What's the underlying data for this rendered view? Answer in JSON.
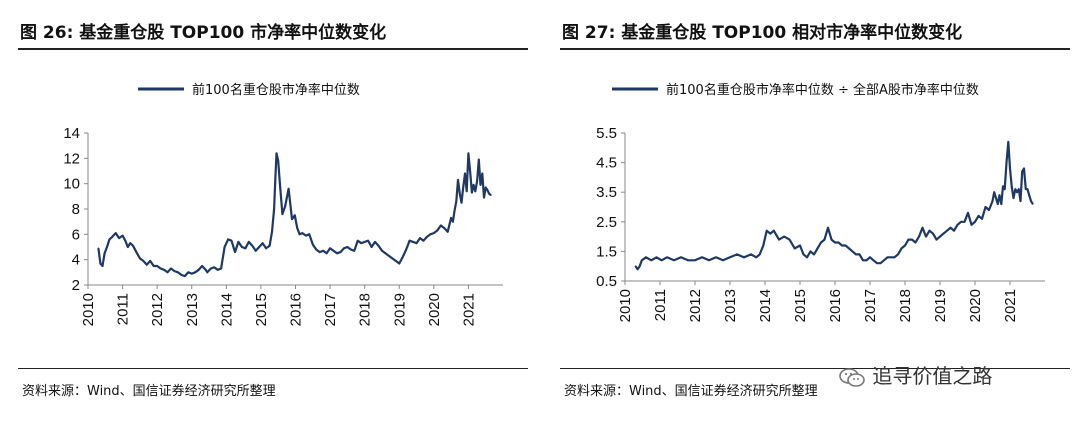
{
  "figures": [
    {
      "title": "图 26: 基金重仓股 TOP100 市净率中位数变化",
      "source": "资料来源：Wind、国信证券经济研究所整理",
      "chart_data": {
        "type": "line",
        "title": "",
        "xlabel": "",
        "ylabel": "",
        "xlim": [
          2010.0,
          2022.0
        ],
        "ylim": [
          2,
          14
        ],
        "yticks": [
          "2",
          "4",
          "6",
          "8",
          "10",
          "12",
          "14"
        ],
        "xticks": [
          "2010",
          "2011",
          "2012",
          "2013",
          "2014",
          "2015",
          "2016",
          "2017",
          "2018",
          "2019",
          "2020",
          "2021"
        ],
        "legend_position": "top-center",
        "series": [
          {
            "name": "前100名重仓股市净率中位数",
            "color": "#1f3864",
            "x": [
              2010.3,
              2010.36,
              2010.42,
              2010.48,
              2010.55,
              2010.62,
              2010.7,
              2010.8,
              2010.9,
              2011.0,
              2011.08,
              2011.15,
              2011.22,
              2011.3,
              2011.4,
              2011.5,
              2011.6,
              2011.7,
              2011.8,
              2011.9,
              2012.0,
              2012.1,
              2012.2,
              2012.3,
              2012.4,
              2012.5,
              2012.6,
              2012.7,
              2012.8,
              2012.9,
              2013.0,
              2013.1,
              2013.2,
              2013.3,
              2013.4,
              2013.45,
              2013.55,
              2013.65,
              2013.75,
              2013.85,
              2013.95,
              2014.05,
              2014.15,
              2014.25,
              2014.35,
              2014.45,
              2014.55,
              2014.65,
              2014.75,
              2014.85,
              2014.95,
              2015.05,
              2015.15,
              2015.25,
              2015.32,
              2015.38,
              2015.42,
              2015.45,
              2015.5,
              2015.55,
              2015.62,
              2015.7,
              2015.8,
              2015.9,
              2015.98,
              2016.05,
              2016.12,
              2016.2,
              2016.3,
              2016.4,
              2016.5,
              2016.6,
              2016.7,
              2016.8,
              2016.9,
              2017.0,
              2017.1,
              2017.2,
              2017.3,
              2017.4,
              2017.5,
              2017.6,
              2017.7,
              2017.8,
              2017.9,
              2018.0,
              2018.1,
              2018.2,
              2018.3,
              2018.4,
              2018.5,
              2018.6,
              2018.7,
              2018.8,
              2018.9,
              2019.0,
              2019.1,
              2019.2,
              2019.3,
              2019.4,
              2019.5,
              2019.6,
              2019.7,
              2019.8,
              2019.9,
              2020.0,
              2020.1,
              2020.2,
              2020.3,
              2020.4,
              2020.5,
              2020.55,
              2020.6,
              2020.65,
              2020.7,
              2020.75,
              2020.8,
              2020.85,
              2020.9,
              2020.95,
              2021.0,
              2021.05,
              2021.1,
              2021.15,
              2021.2,
              2021.25,
              2021.3,
              2021.35,
              2021.4,
              2021.45,
              2021.5,
              2021.55,
              2021.6,
              2021.65
            ],
            "values": [
              4.9,
              3.7,
              3.5,
              4.5,
              5.0,
              5.6,
              5.8,
              6.1,
              5.7,
              5.9,
              5.5,
              5.0,
              5.3,
              5.1,
              4.6,
              4.1,
              3.9,
              3.6,
              3.9,
              3.5,
              3.5,
              3.3,
              3.2,
              3.0,
              3.3,
              3.1,
              3.0,
              2.8,
              2.7,
              3.0,
              2.9,
              3.0,
              3.2,
              3.5,
              3.2,
              3.0,
              3.3,
              3.4,
              3.2,
              3.3,
              5.0,
              5.6,
              5.5,
              4.6,
              5.4,
              5.0,
              4.9,
              5.4,
              5.1,
              4.7,
              5.0,
              5.3,
              4.9,
              5.1,
              6.2,
              8.0,
              10.5,
              12.4,
              11.8,
              10.0,
              7.6,
              8.2,
              9.6,
              7.2,
              7.5,
              6.5,
              6.0,
              6.1,
              5.9,
              6.0,
              5.2,
              4.8,
              4.6,
              4.7,
              4.5,
              4.9,
              4.7,
              4.5,
              4.6,
              4.9,
              5.0,
              4.8,
              4.7,
              5.5,
              5.3,
              5.4,
              5.5,
              5.0,
              5.4,
              5.1,
              4.7,
              4.5,
              4.3,
              4.1,
              3.9,
              3.7,
              4.2,
              4.8,
              5.5,
              5.4,
              5.3,
              5.7,
              5.5,
              5.8,
              6.0,
              6.1,
              6.3,
              6.7,
              6.5,
              6.2,
              7.3,
              7.0,
              7.9,
              8.6,
              10.3,
              9.2,
              8.5,
              9.7,
              10.8,
              9.4,
              12.4,
              11.0,
              9.3,
              9.9,
              9.4,
              10.2,
              11.9,
              9.9,
              10.8,
              8.9,
              9.7,
              9.5,
              9.2,
              9.1
            ]
          }
        ]
      }
    },
    {
      "title": "图 27: 基金重仓股 TOP100 相对市净率中位数变化",
      "source": "资料来源：Wind、国信证券经济研究所整理",
      "chart_data": {
        "type": "line",
        "title": "",
        "xlabel": "",
        "ylabel": "",
        "xlim": [
          2010.0,
          2022.0
        ],
        "ylim": [
          0.5,
          5.5
        ],
        "yticks": [
          "0.5",
          "1.5",
          "2.5",
          "3.5",
          "4.5",
          "5.5"
        ],
        "xticks": [
          "2010",
          "2011",
          "2012",
          "2013",
          "2014",
          "2015",
          "2016",
          "2017",
          "2018",
          "2019",
          "2020",
          "2021"
        ],
        "legend_position": "top-center",
        "series": [
          {
            "name": "前100名重仓股市净率中位数 ÷ 全部A股市净率中位数",
            "color": "#1f3864",
            "x": [
              2010.3,
              2010.36,
              2010.42,
              2010.48,
              2010.6,
              2010.75,
              2010.9,
              2011.05,
              2011.2,
              2011.4,
              2011.6,
              2011.8,
              2012.0,
              2012.2,
              2012.4,
              2012.6,
              2012.8,
              2013.0,
              2013.2,
              2013.4,
              2013.6,
              2013.75,
              2013.85,
              2013.95,
              2014.05,
              2014.15,
              2014.25,
              2014.4,
              2014.55,
              2014.7,
              2014.85,
              2015.0,
              2015.1,
              2015.2,
              2015.3,
              2015.4,
              2015.5,
              2015.6,
              2015.7,
              2015.8,
              2015.9,
              2016.0,
              2016.1,
              2016.2,
              2016.3,
              2016.4,
              2016.5,
              2016.6,
              2016.7,
              2016.8,
              2016.9,
              2017.0,
              2017.1,
              2017.2,
              2017.3,
              2017.4,
              2017.5,
              2017.6,
              2017.7,
              2017.8,
              2017.9,
              2018.0,
              2018.1,
              2018.2,
              2018.3,
              2018.4,
              2018.5,
              2018.6,
              2018.7,
              2018.8,
              2018.9,
              2019.0,
              2019.1,
              2019.2,
              2019.3,
              2019.4,
              2019.5,
              2019.6,
              2019.7,
              2019.8,
              2019.9,
              2020.0,
              2020.1,
              2020.2,
              2020.3,
              2020.4,
              2020.5,
              2020.55,
              2020.6,
              2020.65,
              2020.7,
              2020.75,
              2020.8,
              2020.85,
              2020.9,
              2020.95,
              2021.0,
              2021.05,
              2021.1,
              2021.15,
              2021.2,
              2021.25,
              2021.3,
              2021.35,
              2021.4,
              2021.45,
              2021.5,
              2021.55,
              2021.6,
              2021.65
            ],
            "values": [
              1.0,
              0.9,
              1.0,
              1.2,
              1.3,
              1.2,
              1.3,
              1.2,
              1.3,
              1.2,
              1.3,
              1.2,
              1.2,
              1.3,
              1.2,
              1.3,
              1.2,
              1.3,
              1.4,
              1.3,
              1.4,
              1.3,
              1.4,
              1.7,
              2.2,
              2.1,
              2.2,
              1.9,
              2.0,
              1.9,
              1.6,
              1.7,
              1.4,
              1.3,
              1.5,
              1.4,
              1.6,
              1.8,
              1.9,
              2.3,
              1.9,
              1.8,
              1.8,
              1.7,
              1.7,
              1.6,
              1.5,
              1.4,
              1.4,
              1.2,
              1.2,
              1.3,
              1.2,
              1.1,
              1.1,
              1.2,
              1.3,
              1.3,
              1.3,
              1.4,
              1.6,
              1.7,
              1.9,
              1.9,
              1.8,
              2.0,
              2.3,
              2.0,
              2.2,
              2.1,
              1.9,
              2.0,
              2.1,
              2.2,
              2.3,
              2.2,
              2.4,
              2.5,
              2.5,
              2.8,
              2.4,
              2.5,
              2.7,
              2.6,
              3.0,
              2.9,
              3.2,
              3.5,
              3.3,
              3.1,
              3.4,
              3.1,
              3.7,
              3.6,
              4.5,
              5.2,
              4.3,
              3.7,
              3.3,
              3.6,
              3.5,
              3.6,
              3.2,
              4.2,
              4.3,
              3.6,
              3.6,
              3.4,
              3.2,
              3.1
            ]
          }
        ]
      }
    }
  ],
  "watermark": {
    "text": "追寻价值之路",
    "icon": "wechat-icon"
  }
}
